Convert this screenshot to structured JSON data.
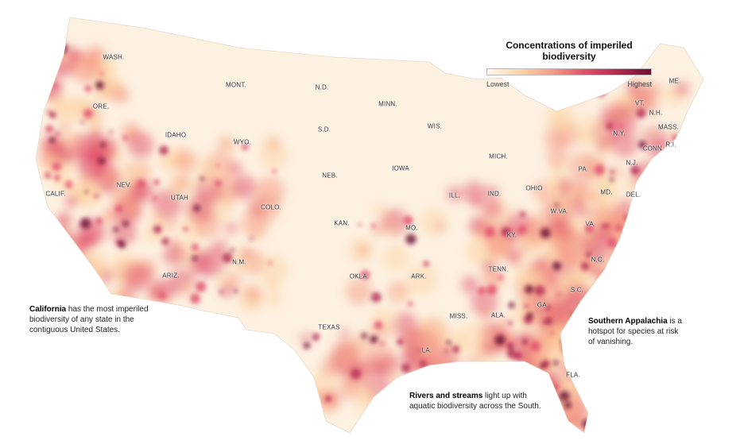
{
  "legend": {
    "title": "Concentrations of imperiled biodiversity",
    "low_label": "Lowest",
    "high_label": "Highest",
    "colors": [
      "#fff8ee",
      "#fdd4a5",
      "#f59a82",
      "#e04e69",
      "#b4274f",
      "#6b0f33"
    ]
  },
  "states": [
    "WASH.",
    "ORE.",
    "IDAHO",
    "MONT.",
    "WYO.",
    "N.D.",
    "S.D.",
    "MINN.",
    "WIS.",
    "MICH.",
    "NEB.",
    "IOWA",
    "NEV.",
    "UTAH",
    "COLO.",
    "KAN.",
    "MO.",
    "ILL.",
    "IND.",
    "OHIO",
    "PA.",
    "N.Y.",
    "VT.",
    "N.H.",
    "ME.",
    "MASS.",
    "CONN.",
    "R.I.",
    "N.J.",
    "MD.",
    "DEL.",
    "W.VA.",
    "VA.",
    "KY.",
    "TENN.",
    "N.C.",
    "S.C.",
    "GA.",
    "ALA.",
    "MISS.",
    "ARK.",
    "LA.",
    "TEXAS",
    "OKLA.",
    "N.M.",
    "ARIZ.",
    "CALIF.",
    "FLA."
  ],
  "annotations": {
    "california": {
      "bold": "California",
      "text": " has the most imperiled biodiversity of any state in the contiguous United States."
    },
    "appalachia": {
      "bold": "Southern Appalachia",
      "text": " is a hotspot for species at risk of vanishing."
    },
    "rivers": {
      "bold": "Rivers and streams",
      "text": " light up with aquatic biodiversity across the South."
    }
  }
}
